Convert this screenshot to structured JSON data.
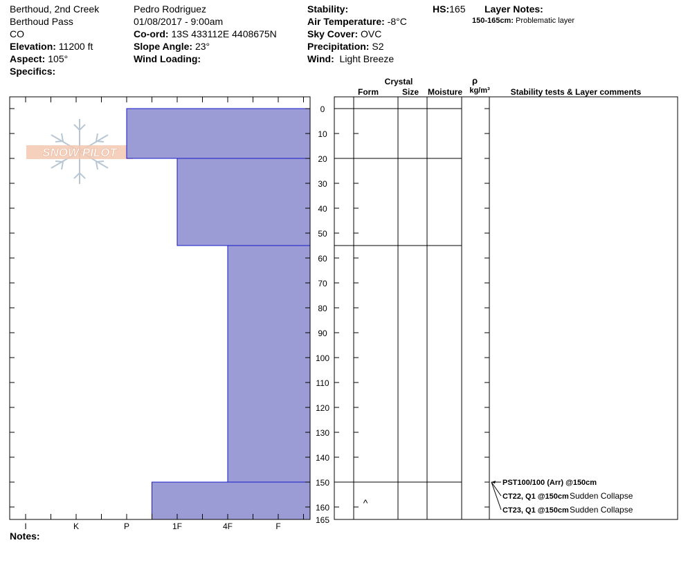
{
  "header": {
    "location": "Berthoud, 2nd Creek",
    "area": "Berthoud Pass",
    "state": "CO",
    "elevation_label": "Elevation:",
    "elevation": "11200 ft",
    "aspect_label": "Aspect:",
    "aspect": "105°",
    "specifics_label": "Specifics:",
    "observer": "Pedro Rodriguez",
    "datetime": "01/08/2017 - 9:00am",
    "coord_label": "Co-ord:",
    "coord": "13S 433112E 4408675N",
    "slope_label": "Slope Angle:",
    "slope": "23°",
    "wind_loading_label": "Wind Loading:",
    "stability_label": "Stability:",
    "air_temp_label": "Air Temperature:",
    "air_temp": "-8°C",
    "sky_label": "Sky Cover:",
    "sky": "OVC",
    "precip_label": "Precipitation:",
    "precip": "S2",
    "wind_label": "Wind:",
    "wind": "Light Breeze",
    "hs_label": "HS:",
    "hs": "165",
    "layer_notes_label": "Layer Notes:",
    "layer_note_range": "150-165cm:",
    "layer_note_text": "Problematic layer"
  },
  "columns": {
    "crystal": "Crystal",
    "form": "Form",
    "size": "Size",
    "moisture": "Moisture",
    "rho": "ρ",
    "density_unit": "kg/m³",
    "comments": "Stability tests & Layer comments"
  },
  "logo_text": "SNOW PILOT",
  "notes_label": "Notes:",
  "chart_data": {
    "type": "bar",
    "orientation": "horizontal",
    "hardness_scale": [
      "I",
      "K",
      "P",
      "1F",
      "4F",
      "F"
    ],
    "depth_ticks": [
      0,
      10,
      20,
      30,
      40,
      50,
      60,
      70,
      80,
      90,
      100,
      110,
      120,
      130,
      140,
      150,
      160,
      165
    ],
    "depth_max": 165,
    "layers": [
      {
        "top": 0,
        "bottom": 20,
        "hardness_index": 2
      },
      {
        "top": 20,
        "bottom": 55,
        "hardness_index": 3
      },
      {
        "top": 55,
        "bottom": 150,
        "hardness_index": 4
      },
      {
        "top": 150,
        "bottom": 165,
        "hardness_index": 2.5
      }
    ],
    "layer_boundaries": [
      0,
      20,
      55,
      150
    ],
    "crystal_symbols": [
      {
        "depth": 157,
        "symbol": "^"
      }
    ],
    "stability_tests": [
      {
        "depth": 150,
        "code": "PST100/100 (Arr) @150cm",
        "comment": ""
      },
      {
        "depth": 150,
        "code": "CT22, Q1 @150cm",
        "comment": "Sudden Collapse"
      },
      {
        "depth": 150,
        "code": "CT23, Q1 @150cm",
        "comment": "Sudden Collapse"
      }
    ],
    "colors": {
      "fill": "#9b9bd6",
      "stroke": "#1a1ac8"
    }
  }
}
